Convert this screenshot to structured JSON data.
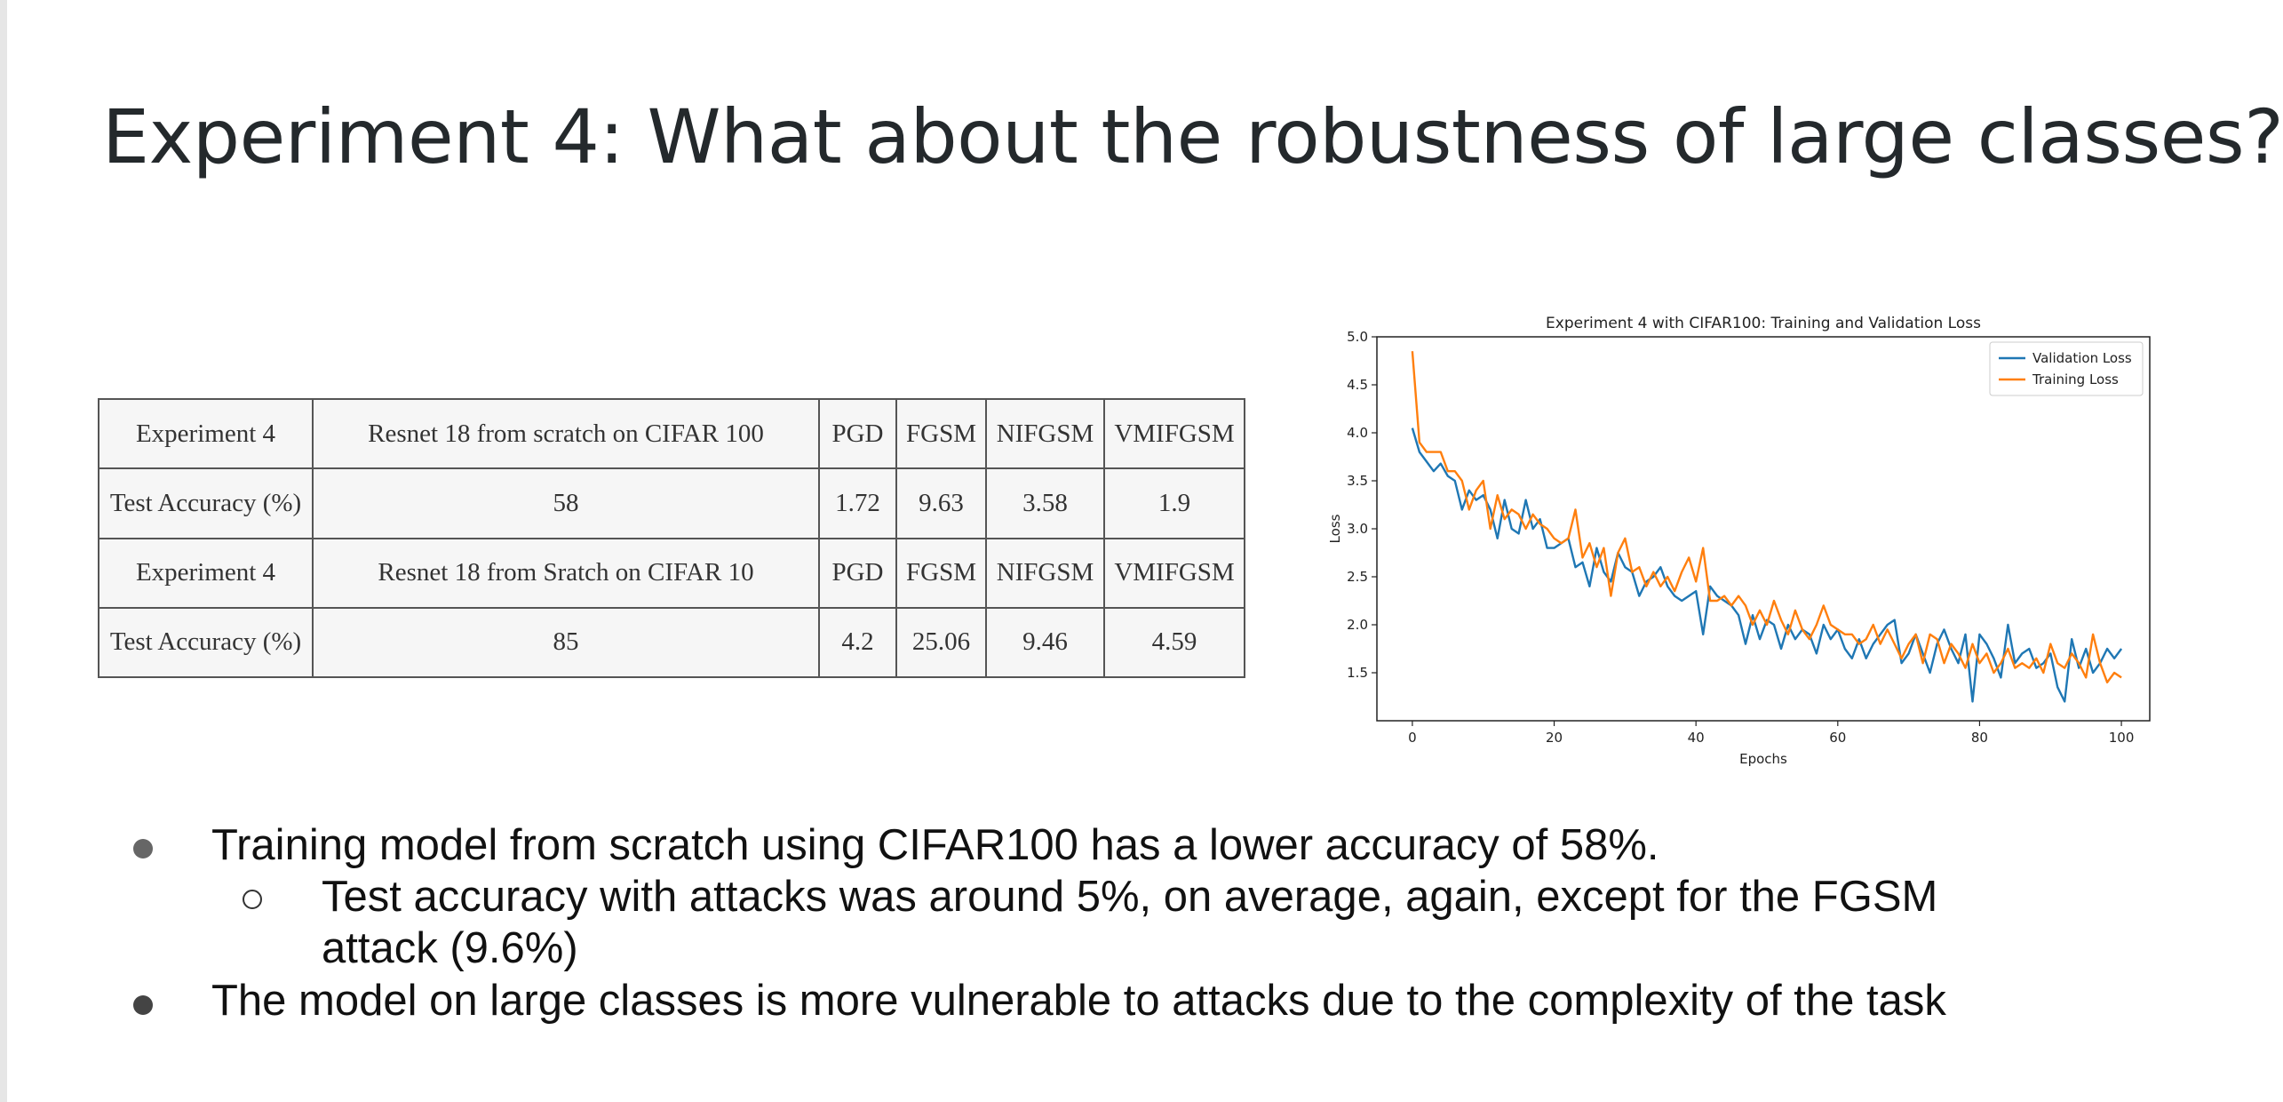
{
  "slide": {
    "title": "Experiment 4: What about the robustness of large classes?"
  },
  "table": {
    "rows": [
      [
        "Experiment   4",
        "Resnet 18 from scratch on CIFAR 100",
        "PGD",
        "FGSM",
        "NIFGSM",
        "VMIFGSM"
      ],
      [
        "Test Accuracy (%)",
        "58",
        "1.72",
        "9.63",
        "3.58",
        "1.9"
      ],
      [
        "Experiment   4",
        "Resnet 18  from Sratch on CIFAR 10",
        "PGD",
        "FGSM",
        "NIFGSM",
        "VMIFGSM"
      ],
      [
        "Test Accuracy (%)",
        "85",
        "4.2",
        "25.06",
        "9.46",
        "4.59"
      ]
    ]
  },
  "chart_data": {
    "type": "line",
    "title": "Experiment 4 with CIFAR100: Training and Validation Loss",
    "xlabel": "Epochs",
    "ylabel": "Loss",
    "xlim": [
      -5,
      104
    ],
    "ylim": [
      1.0,
      5.0
    ],
    "xticks": [
      0,
      20,
      40,
      60,
      80,
      100
    ],
    "yticks": [
      1.5,
      2.0,
      2.5,
      3.0,
      3.5,
      4.0,
      4.5,
      5.0
    ],
    "legend_position": "top-right",
    "x": [
      0,
      1,
      2,
      3,
      4,
      5,
      6,
      7,
      8,
      9,
      10,
      11,
      12,
      13,
      14,
      15,
      16,
      17,
      18,
      19,
      20,
      21,
      22,
      23,
      24,
      25,
      26,
      27,
      28,
      29,
      30,
      31,
      32,
      33,
      34,
      35,
      36,
      37,
      38,
      39,
      40,
      41,
      42,
      43,
      44,
      45,
      46,
      47,
      48,
      49,
      50,
      51,
      52,
      53,
      54,
      55,
      56,
      57,
      58,
      59,
      60,
      61,
      62,
      63,
      64,
      65,
      66,
      67,
      68,
      69,
      70,
      71,
      72,
      73,
      74,
      75,
      76,
      77,
      78,
      79,
      80,
      81,
      82,
      83,
      84,
      85,
      86,
      87,
      88,
      89,
      90,
      91,
      92,
      93,
      94,
      95,
      96,
      97,
      98,
      99,
      100
    ],
    "series": [
      {
        "name": "Validation Loss",
        "color": "#1f77b4",
        "values": [
          4.05,
          3.8,
          3.7,
          3.6,
          3.68,
          3.55,
          3.5,
          3.2,
          3.4,
          3.3,
          3.35,
          3.2,
          2.9,
          3.3,
          3.0,
          2.95,
          3.3,
          3.0,
          3.1,
          2.8,
          2.8,
          2.85,
          2.9,
          2.6,
          2.65,
          2.4,
          2.8,
          2.55,
          2.45,
          2.75,
          2.6,
          2.55,
          2.3,
          2.45,
          2.5,
          2.6,
          2.4,
          2.3,
          2.25,
          2.3,
          2.35,
          1.9,
          2.4,
          2.3,
          2.25,
          2.2,
          2.1,
          1.8,
          2.1,
          1.85,
          2.05,
          2.0,
          1.75,
          2.0,
          1.85,
          1.95,
          1.9,
          1.7,
          2.0,
          1.85,
          1.95,
          1.75,
          1.65,
          1.85,
          1.65,
          1.8,
          1.9,
          2.0,
          2.05,
          1.6,
          1.7,
          1.9,
          1.7,
          1.5,
          1.8,
          1.95,
          1.75,
          1.6,
          1.9,
          1.2,
          1.9,
          1.8,
          1.65,
          1.45,
          2.0,
          1.6,
          1.7,
          1.75,
          1.55,
          1.6,
          1.7,
          1.35,
          1.2,
          1.85,
          1.55,
          1.75,
          1.5,
          1.6,
          1.75,
          1.65,
          1.75
        ]
      },
      {
        "name": "Training Loss",
        "color": "#ff7f0e",
        "values": [
          4.85,
          3.9,
          3.8,
          3.8,
          3.8,
          3.6,
          3.6,
          3.5,
          3.2,
          3.4,
          3.5,
          3.0,
          3.35,
          3.1,
          3.2,
          3.15,
          3.0,
          3.15,
          3.05,
          3.0,
          2.9,
          2.85,
          2.9,
          3.2,
          2.7,
          2.85,
          2.6,
          2.8,
          2.3,
          2.75,
          2.9,
          2.55,
          2.6,
          2.4,
          2.55,
          2.4,
          2.5,
          2.35,
          2.55,
          2.7,
          2.45,
          2.8,
          2.25,
          2.25,
          2.3,
          2.2,
          2.3,
          2.2,
          2.0,
          2.15,
          2.0,
          2.25,
          2.05,
          1.9,
          2.15,
          1.95,
          1.85,
          2.0,
          2.2,
          2.0,
          1.95,
          1.9,
          1.9,
          1.8,
          1.85,
          2.0,
          1.8,
          1.95,
          1.8,
          1.65,
          1.8,
          1.9,
          1.6,
          1.9,
          1.85,
          1.6,
          1.8,
          1.7,
          1.55,
          1.8,
          1.6,
          1.7,
          1.5,
          1.6,
          1.75,
          1.55,
          1.6,
          1.55,
          1.65,
          1.5,
          1.8,
          1.6,
          1.55,
          1.7,
          1.6,
          1.45,
          1.9,
          1.6,
          1.4,
          1.5,
          1.45
        ]
      }
    ]
  },
  "bullets": {
    "items": [
      "Training model from scratch using CIFAR100 has a lower accuracy of 58%.",
      "Test accuracy with attacks was around 5%, on average, again, except for the FGSM",
      "attack (9.6%)",
      "The model on large classes is more vulnerable to attacks due to the complexity of the task"
    ]
  }
}
